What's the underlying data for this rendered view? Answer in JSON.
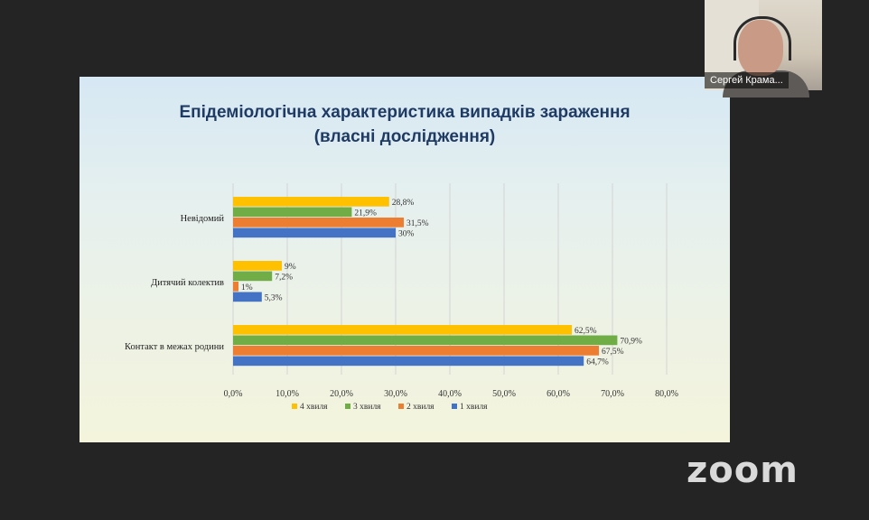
{
  "slide": {
    "title_line1": "Епідеміологічна характеристика випадків зараження",
    "title_line2": "(власні дослідження)"
  },
  "chart_data": {
    "type": "bar",
    "orientation": "horizontal",
    "categories": [
      "Невідомий",
      "Дитячий колектив",
      "Контакт в межах родини"
    ],
    "series": [
      {
        "name": "4 хвиля",
        "color": "#ffc000",
        "values": [
          28.8,
          9,
          62.5
        ],
        "labels": [
          "28,8%",
          "9%",
          "62,5%"
        ]
      },
      {
        "name": "3 хвиля",
        "color": "#70ad47",
        "values": [
          21.9,
          7.2,
          70.9
        ],
        "labels": [
          "21,9%",
          "7,2%",
          "70,9%"
        ]
      },
      {
        "name": "2 хвиля",
        "color": "#ed7d31",
        "values": [
          31.5,
          1,
          67.5
        ],
        "labels": [
          "31,5%",
          "1%",
          "67,5%"
        ]
      },
      {
        "name": "1 хвиля",
        "color": "#4472c4",
        "values": [
          30,
          5.3,
          64.7
        ],
        "labels": [
          "30%",
          "5,3%",
          "64,7%"
        ]
      }
    ],
    "xlim": [
      0,
      80
    ],
    "xticks": [
      "0,0%",
      "10,0%",
      "20,0%",
      "30,0%",
      "40,0%",
      "50,0%",
      "60,0%",
      "70,0%",
      "80,0%"
    ],
    "grid": true,
    "legend_position": "bottom"
  },
  "video": {
    "participant_name": "Сергей Крама..."
  },
  "app": {
    "logo_text": "zoom"
  }
}
